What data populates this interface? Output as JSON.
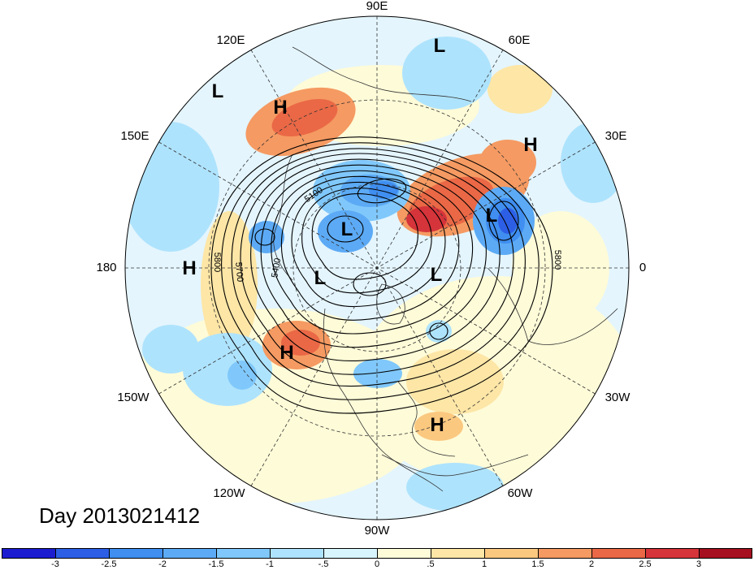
{
  "map": {
    "longitude_labels": [
      "90E",
      "60E",
      "30E",
      "0",
      "30W",
      "60W",
      "90W",
      "120W",
      "150W",
      "180",
      "150E",
      "120E"
    ],
    "pressure_centers": [
      "L",
      "L",
      "H",
      "H",
      "L",
      "L",
      "H",
      "L",
      "L",
      "H",
      "H"
    ],
    "contour_labels": [
      "5100",
      "5400",
      "5700",
      "5800",
      "5800"
    ]
  },
  "title": "Day 2013021412",
  "colorbar": {
    "labels": [
      "-3",
      "-2.5",
      "-2",
      "-1.5",
      "-1",
      "-.5",
      "0",
      ".5",
      "1",
      "1.5",
      "2",
      "2.5",
      "3"
    ],
    "colors": [
      "#1c1cd0",
      "#2d5fe6",
      "#3f8ef0",
      "#5caaf5",
      "#80c8fb",
      "#aee3fd",
      "#d8f5fe",
      "#fefbd8",
      "#fde6a6",
      "#fbc880",
      "#f59a62",
      "#ea6846",
      "#d5343a",
      "#a50f20"
    ]
  }
}
